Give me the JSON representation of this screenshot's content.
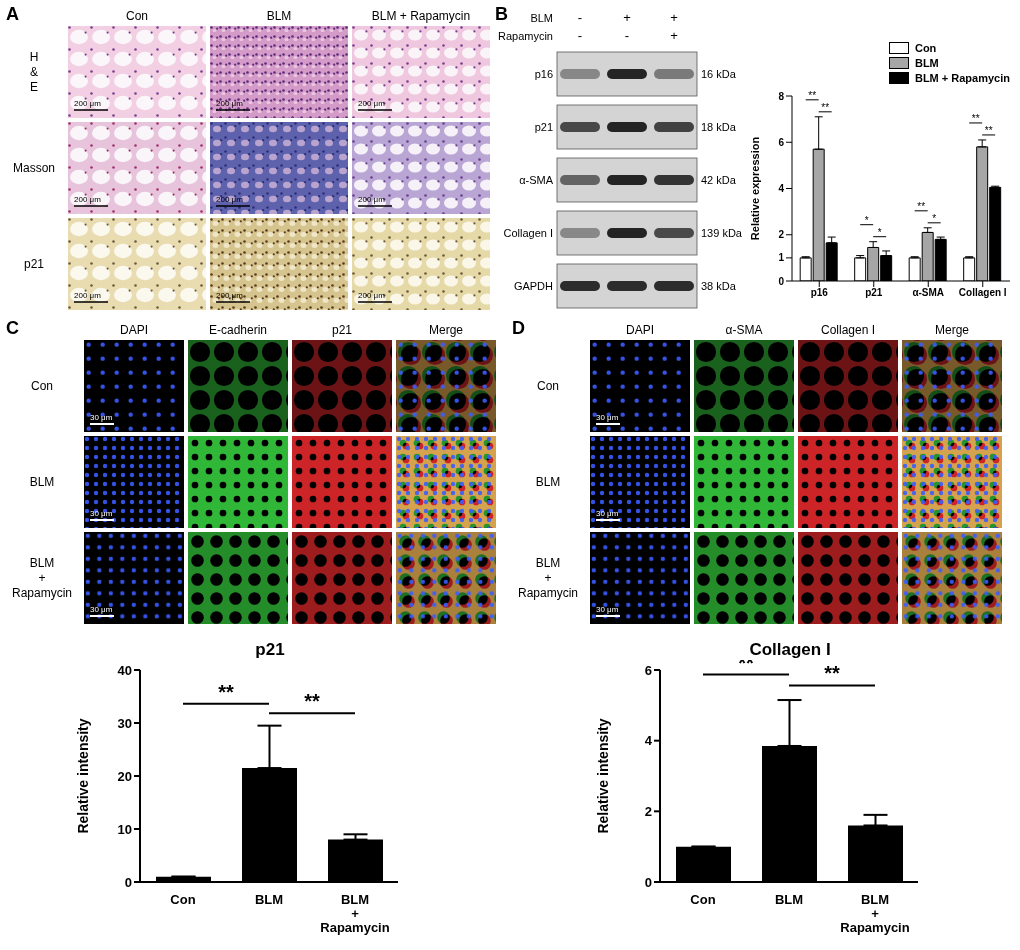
{
  "panels": [
    {
      "label": "A",
      "columns": [
        "Con",
        "BLM",
        "BLM + Rapamycin"
      ],
      "rows": [
        "H & E",
        "Masson",
        "p21"
      ],
      "scale_bar": "200 μm"
    },
    {
      "label": "B",
      "treatments": [
        {
          "name": "BLM",
          "signs": [
            "-",
            "+",
            "+"
          ]
        },
        {
          "name": "Rapamycin",
          "signs": [
            "-",
            "-",
            "+"
          ]
        }
      ],
      "bands": [
        {
          "name": "p16",
          "size": "16 kDa"
        },
        {
          "name": "p21",
          "size": "18 kDa"
        },
        {
          "name": "α-SMA",
          "size": "42 kDa"
        },
        {
          "name": "Collagen I",
          "size": "139 kDa"
        },
        {
          "name": "GAPDH",
          "size": "38 kDa"
        }
      ]
    },
    {
      "label": "C",
      "columns": [
        "DAPI",
        "E-cadherin",
        "p21",
        "Merge"
      ],
      "rows": [
        "Con",
        "BLM",
        "BLM + Rapamycin"
      ],
      "scale_bar": "30 μm"
    },
    {
      "label": "D",
      "columns": [
        "DAPI",
        "α-SMA",
        "Collagen I",
        "Merge"
      ],
      "rows": [
        "Con",
        "BLM",
        "BLM + Rapamycin"
      ],
      "scale_bar": "30 μm"
    }
  ],
  "chart_data": [
    {
      "type": "bar",
      "categories": [
        "p16",
        "p21",
        "α-SMA",
        "Collagen I"
      ],
      "series": [
        {
          "name": "Con",
          "color": "#ffffff",
          "values": [
            1,
            1,
            1,
            1
          ],
          "errors": [
            0.05,
            0.1,
            0.05,
            0.05
          ]
        },
        {
          "name": "BLM",
          "color": "#a6a6a6",
          "values": [
            5.7,
            1.45,
            2.1,
            5.8
          ],
          "errors": [
            1.4,
            0.25,
            0.2,
            0.3
          ]
        },
        {
          "name": "BLM + Rapamycin",
          "color": "#000000",
          "values": [
            1.65,
            1.1,
            1.8,
            4.05
          ],
          "errors": [
            0.25,
            0.2,
            0.1,
            0.05
          ]
        }
      ],
      "y_label": "Relative expression",
      "ylim": [
        0,
        8
      ],
      "yticks": [
        0,
        1,
        2,
        4,
        6,
        8
      ],
      "legend": "upper right",
      "annotations": [
        {
          "category": "p16",
          "from": "Con",
          "to": "BLM",
          "label": "**"
        },
        {
          "category": "p16",
          "from": "BLM",
          "to": "BLM + Rapamycin",
          "label": "**"
        },
        {
          "category": "p21",
          "from": "Con",
          "to": "BLM",
          "label": "*"
        },
        {
          "category": "p21",
          "from": "BLM",
          "to": "BLM + Rapamycin",
          "label": "*"
        },
        {
          "category": "α-SMA",
          "from": "Con",
          "to": "BLM",
          "label": "**"
        },
        {
          "category": "α-SMA",
          "from": "BLM",
          "to": "BLM + Rapamycin",
          "label": "*"
        },
        {
          "category": "Collagen I",
          "from": "Con",
          "to": "BLM",
          "label": "**"
        },
        {
          "category": "Collagen I",
          "from": "BLM",
          "to": "BLM + Rapamycin",
          "label": "**"
        }
      ]
    },
    {
      "type": "bar",
      "title": "p21",
      "categories": [
        "Con",
        "BLM",
        "BLM + Rapamycin"
      ],
      "values": [
        1,
        21.5,
        8
      ],
      "errors": [
        0,
        8,
        1
      ],
      "color": "#000000",
      "y_label": "Relative intensity",
      "ylim": [
        0,
        40
      ],
      "yticks": [
        0,
        10,
        20,
        30,
        40
      ],
      "annotations": [
        {
          "from": "Con",
          "to": "BLM",
          "label": "**"
        },
        {
          "from": "BLM",
          "to": "BLM + Rapamycin",
          "label": "**"
        }
      ]
    },
    {
      "type": "bar",
      "title": "Collagen I",
      "categories": [
        "Con",
        "BLM",
        "BLM + Rapamycin"
      ],
      "values": [
        1,
        3.85,
        1.6
      ],
      "errors": [
        0,
        1.3,
        0.3
      ],
      "color": "#000000",
      "y_label": "Relative intensity",
      "ylim": [
        0,
        6
      ],
      "yticks": [
        0,
        2,
        4,
        6
      ],
      "annotations": [
        {
          "from": "Con",
          "to": "BLM",
          "label": "**"
        },
        {
          "from": "BLM",
          "to": "BLM + Rapamycin",
          "label": "**"
        }
      ]
    }
  ]
}
